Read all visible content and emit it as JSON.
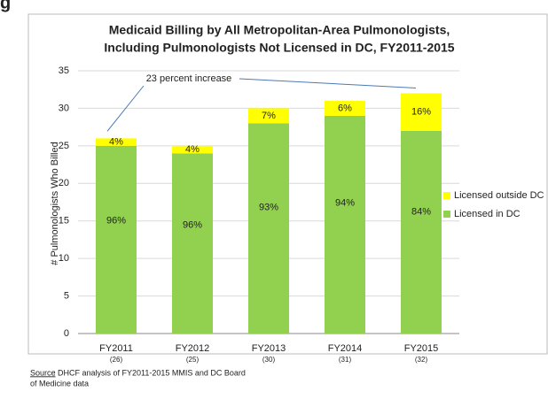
{
  "cropped_heading": "g",
  "chart_data": {
    "type": "stacked_bar",
    "title": [
      "Medicaid Billing by All Metropolitan-Area Pulmonologists,",
      "Including Pulmonologists Not Licensed in DC, FY2011-2015"
    ],
    "y_label": "# Pulmonologists Who Billed",
    "categories": [
      "FY2011",
      "FY2012",
      "FY2013",
      "FY2014",
      "FY2015"
    ],
    "category_sublabels": [
      "(26)",
      "(25)",
      "(30)",
      "(31)",
      "(32)"
    ],
    "series": [
      {
        "name": "Licensed in DC",
        "color": "#92d050",
        "values": [
          25,
          24,
          28,
          29,
          27
        ],
        "percent_labels": [
          "96%",
          "96%",
          "93%",
          "94%",
          "84%"
        ]
      },
      {
        "name": "Licensed outside DC",
        "color": "#ffff00",
        "values": [
          1,
          1,
          2,
          2,
          5
        ],
        "percent_labels": [
          "4%",
          "4%",
          "7%",
          "6%",
          "16%"
        ]
      }
    ],
    "ylim": [
      0,
      35
    ],
    "yticks": [
      0,
      5,
      10,
      15,
      20,
      25,
      30,
      35
    ],
    "grid": true,
    "legend": "right",
    "annotation": "23 percent increase",
    "source_label": "Source",
    "source_lines": [
      ": DHCF analysis of FY2011-2015 MMIS and DC Board",
      "of Medicine data"
    ]
  }
}
